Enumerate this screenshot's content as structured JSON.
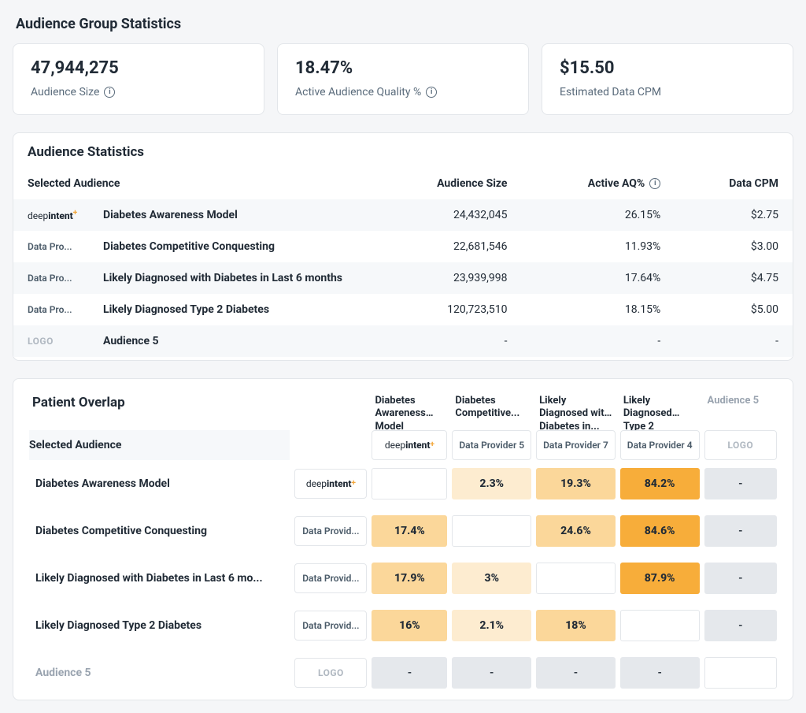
{
  "colors": {
    "background": "#f5f6f8",
    "card_bg": "#ffffff",
    "card_border": "#e3e6ea",
    "text_dark": "#212b36",
    "text_muted": "#5a6b7b",
    "text_light": "#9aa4b0",
    "row_alt": "#f6f8fa",
    "heat_soft": "#fdecd0",
    "heat_mid": "#fbd79a",
    "heat_strong": "#f7ad3a",
    "grey_cell": "#e5e8ec"
  },
  "summary": {
    "title": "Audience Group Statistics",
    "cards": [
      {
        "value": "47,944,275",
        "label": "Audience Size",
        "has_info": true
      },
      {
        "value": "18.47%",
        "label": "Active Audience Quality %",
        "has_info": true
      },
      {
        "value": "$15.50",
        "label": "Estimated Data CPM",
        "has_info": false
      }
    ]
  },
  "aud_stats": {
    "title": "Audience Statistics",
    "headers": {
      "selected": "Selected Audience",
      "size": "Audience Size",
      "aq": "Active AQ%",
      "cpm": "Data CPM"
    },
    "rows": [
      {
        "provider_type": "deepintent",
        "provider_label": "deepintent",
        "name": "Diabetes Awareness Model",
        "size": "24,432,045",
        "aq": "26.15%",
        "cpm": "$2.75"
      },
      {
        "provider_type": "text",
        "provider_label": "Data Pro...",
        "name": "Diabetes Competitive Conquesting",
        "size": "22,681,546",
        "aq": "11.93%",
        "cpm": "$3.00"
      },
      {
        "provider_type": "text",
        "provider_label": "Data Pro...",
        "name": "Likely Diagnosed with Diabetes in Last 6 months",
        "size": "23,939,998",
        "aq": "17.64%",
        "cpm": "$4.75"
      },
      {
        "provider_type": "text",
        "provider_label": "Data Pro...",
        "name": "Likely Diagnosed Type 2 Diabetes",
        "size": "120,723,510",
        "aq": "18.15%",
        "cpm": "$5.00"
      },
      {
        "provider_type": "logo",
        "provider_label": "LOGO",
        "name": "Audience 5",
        "size": "-",
        "aq": "-",
        "cpm": "-"
      }
    ]
  },
  "overlap": {
    "title": "Patient Overlap",
    "selected_label": "Selected Audience",
    "column_headers": [
      {
        "label": "Diabetes Awareness Model",
        "muted": false
      },
      {
        "label": "Diabetes Competitive...",
        "muted": false
      },
      {
        "label": "Likely Diagnosed with Diabetes in...",
        "muted": false
      },
      {
        "label": "Likely Diagnosed Type 2 Diabetes",
        "muted": false
      },
      {
        "label": "Audience 5",
        "muted": true
      }
    ],
    "column_providers": [
      {
        "type": "deepintent",
        "label": "deepintent"
      },
      {
        "type": "text",
        "label": "Data Provider 5"
      },
      {
        "type": "text",
        "label": "Data Provider 7"
      },
      {
        "type": "text",
        "label": "Data Provider 4"
      },
      {
        "type": "logo",
        "label": "LOGO"
      }
    ],
    "rows": [
      {
        "name": "Diabetes Awareness Model",
        "provider": {
          "type": "deepintent",
          "label": "deepintent"
        },
        "cells": [
          {
            "kind": "blank",
            "text": ""
          },
          {
            "kind": "soft",
            "text": "2.3%"
          },
          {
            "kind": "mid",
            "text": "19.3%"
          },
          {
            "kind": "strong",
            "text": "84.2%"
          },
          {
            "kind": "grey",
            "text": "-"
          }
        ]
      },
      {
        "name": "Diabetes Competitive Conquesting",
        "provider": {
          "type": "text",
          "label": "Data Provid..."
        },
        "cells": [
          {
            "kind": "mid",
            "text": "17.4%"
          },
          {
            "kind": "blank",
            "text": ""
          },
          {
            "kind": "mid",
            "text": "24.6%"
          },
          {
            "kind": "strong",
            "text": "84.6%"
          },
          {
            "kind": "grey",
            "text": "-"
          }
        ]
      },
      {
        "name": "Likely Diagnosed with Diabetes in Last 6 mo...",
        "provider": {
          "type": "text",
          "label": "Data Provid..."
        },
        "cells": [
          {
            "kind": "mid",
            "text": "17.9%"
          },
          {
            "kind": "soft",
            "text": "3%"
          },
          {
            "kind": "blank",
            "text": ""
          },
          {
            "kind": "strong",
            "text": "87.9%"
          },
          {
            "kind": "grey",
            "text": "-"
          }
        ]
      },
      {
        "name": "Likely Diagnosed Type 2 Diabetes",
        "provider": {
          "type": "text",
          "label": "Data Provid..."
        },
        "cells": [
          {
            "kind": "mid",
            "text": "16%"
          },
          {
            "kind": "soft",
            "text": "2.1%"
          },
          {
            "kind": "mid",
            "text": "18%"
          },
          {
            "kind": "blank",
            "text": ""
          },
          {
            "kind": "grey",
            "text": "-"
          }
        ]
      },
      {
        "name": "Audience 5",
        "muted": true,
        "provider": {
          "type": "logo",
          "label": "LOGO"
        },
        "cells": [
          {
            "kind": "grey",
            "text": "-"
          },
          {
            "kind": "grey",
            "text": "-"
          },
          {
            "kind": "grey",
            "text": "-"
          },
          {
            "kind": "grey",
            "text": "-"
          },
          {
            "kind": "blank",
            "text": ""
          }
        ]
      }
    ]
  }
}
